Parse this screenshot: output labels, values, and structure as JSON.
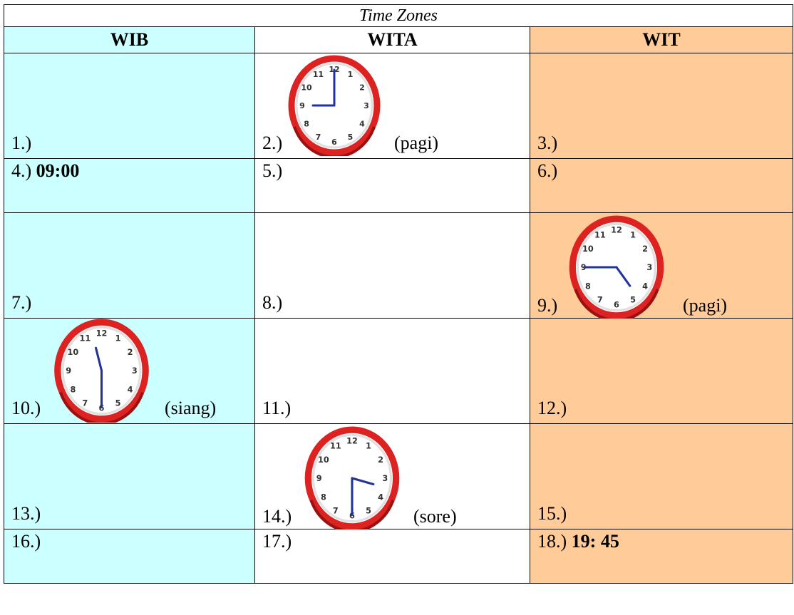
{
  "header": {
    "title": "Time Zones"
  },
  "columns": [
    "WIB",
    "WITA",
    "WIT"
  ],
  "cells": {
    "c1": "1.)",
    "c2": "2.)",
    "c3": "3.)",
    "c4": "4.)",
    "c5": "5.)",
    "c6": "6.)",
    "c7": "7.)",
    "c8": "8.)",
    "c9": "9.)",
    "c10": "10.)",
    "c11": "11.)",
    "c12": "12.)",
    "c13": "13.)",
    "c14": "14.)",
    "c15": "15.)",
    "c16": "16.)",
    "c17": "17.)",
    "c18": "18.)"
  },
  "times": {
    "c4": "09:00",
    "c18": "19: 45"
  },
  "periods": {
    "c2": "(pagi)",
    "c9": "(pagi)",
    "c10": "(siang)",
    "c14": "(sore)"
  },
  "clocks": {
    "c2": {
      "hour": 9,
      "minute": 0
    },
    "c9": {
      "hour": 4,
      "minute": 45
    },
    "c10": {
      "hour": 11,
      "minute": 30
    },
    "c14": {
      "hour": 3,
      "minute": 30
    }
  },
  "colors": {
    "wib": "#ccffff",
    "wita": "#ffffff",
    "wit": "#ffcc99",
    "clock_rim": "#dd2222",
    "clock_hands": "#223399"
  }
}
